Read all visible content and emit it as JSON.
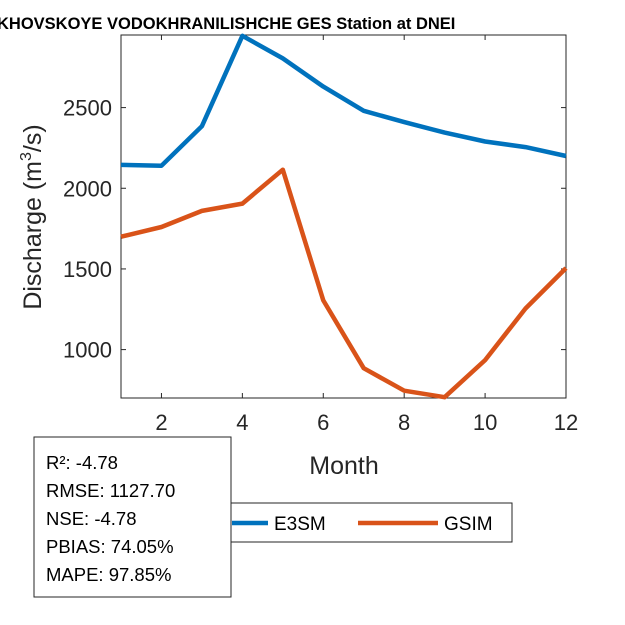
{
  "chart_data": {
    "type": "line",
    "title": "KHOVSKOYE VODOKHRANILISHCHE GES  Station at  DNEI",
    "xlabel": "Month",
    "ylabel": "Discharge (m³/s)",
    "ylabel_parts": {
      "before": "Discharge (m",
      "sup": "3",
      "after": "/s)"
    },
    "xlim": [
      1,
      12
    ],
    "ylim": [
      700,
      2950
    ],
    "xticks": [
      2,
      4,
      6,
      8,
      10,
      12
    ],
    "yticks": [
      1000,
      1500,
      2000,
      2500
    ],
    "x": [
      1,
      2,
      3,
      4,
      5,
      6,
      7,
      8,
      9,
      10,
      11,
      12
    ],
    "series": [
      {
        "name": "E3SM",
        "color": "#0072BD",
        "values": [
          2145,
          2140,
          2385,
          2945,
          2805,
          2630,
          2480,
          2410,
          2345,
          2290,
          2255,
          2200
        ]
      },
      {
        "name": "GSIM",
        "color": "#D95319",
        "values": [
          1700,
          1760,
          1860,
          1905,
          2115,
          1305,
          885,
          745,
          705,
          935,
          1255,
          1505
        ]
      }
    ],
    "grid": false,
    "legend_position": "below-right",
    "stats": [
      "R²: -4.78",
      "RMSE: 1127.70",
      "NSE: -4.78",
      "PBIAS: 74.05%",
      "MAPE: 97.85%"
    ]
  }
}
